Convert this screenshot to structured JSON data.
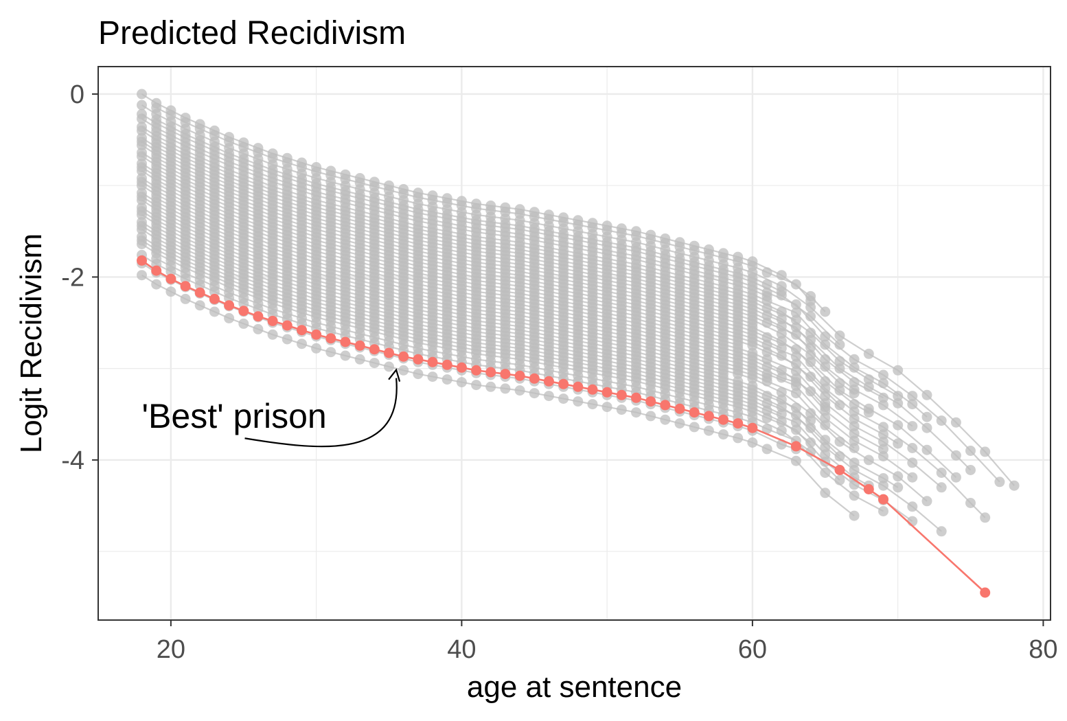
{
  "chart_data": {
    "type": "line",
    "title": "Predicted Recidivism",
    "xlabel": "age at sentence",
    "ylabel": "Logit Recidivism",
    "xlim": [
      15,
      80.5
    ],
    "ylim": [
      -5.75,
      0.3
    ],
    "x_ticks": [
      20,
      40,
      60,
      80
    ],
    "x_tick_labels": [
      "20",
      "40",
      "60",
      "80"
    ],
    "y_ticks": [
      0,
      -2,
      -4
    ],
    "y_tick_labels": [
      "0",
      "-2",
      "-4"
    ],
    "grid": true,
    "legend": "none",
    "colors": {
      "highlight": "#F8766D",
      "background_series": "#BEBEBE",
      "grid": "#EBEBEB",
      "panel_border": "#333333"
    },
    "highlight_series": {
      "name": "'Best' prison",
      "x": [
        18,
        19,
        20,
        21,
        22,
        23,
        24,
        25,
        26,
        27,
        28,
        29,
        30,
        31,
        32,
        33,
        34,
        35,
        36,
        37,
        38,
        39,
        40,
        41,
        42,
        43,
        44,
        45,
        46,
        47,
        48,
        49,
        50,
        51,
        52,
        53,
        54,
        55,
        56,
        57,
        58,
        59,
        60,
        63,
        66,
        68,
        69,
        76
      ],
      "y": [
        -1.82,
        -1.93,
        -2.02,
        -2.1,
        -2.17,
        -2.24,
        -2.31,
        -2.37,
        -2.43,
        -2.48,
        -2.53,
        -2.58,
        -2.63,
        -2.67,
        -2.71,
        -2.75,
        -2.79,
        -2.83,
        -2.87,
        -2.9,
        -2.93,
        -2.96,
        -2.99,
        -3.02,
        -3.04,
        -3.06,
        -3.08,
        -3.11,
        -3.14,
        -3.17,
        -3.2,
        -3.23,
        -3.26,
        -3.29,
        -3.32,
        -3.36,
        -3.4,
        -3.44,
        -3.48,
        -3.52,
        -3.56,
        -3.6,
        -3.65,
        -3.85,
        -4.11,
        -4.32,
        -4.43,
        -5.45
      ]
    },
    "background_series_count": 44,
    "background_profile": {
      "x": [
        18,
        19,
        20,
        21,
        22,
        23,
        24,
        25,
        26,
        27,
        28,
        29,
        30,
        31,
        32,
        33,
        34,
        35,
        36,
        37,
        38,
        39,
        40,
        41,
        42,
        43,
        44,
        45,
        46,
        47,
        48,
        49,
        50,
        51,
        52,
        53,
        54,
        55,
        56,
        57,
        58,
        59,
        60,
        61,
        62,
        63,
        64,
        65,
        66,
        67,
        68,
        69,
        70,
        71,
        72,
        73,
        74,
        75,
        76,
        77,
        78
      ],
      "y": [
        0,
        -0.1,
        -0.18,
        -0.26,
        -0.33,
        -0.4,
        -0.47,
        -0.53,
        -0.59,
        -0.65,
        -0.7,
        -0.75,
        -0.8,
        -0.84,
        -0.88,
        -0.92,
        -0.96,
        -1.0,
        -1.04,
        -1.08,
        -1.11,
        -1.14,
        -1.17,
        -1.2,
        -1.22,
        -1.24,
        -1.26,
        -1.29,
        -1.32,
        -1.35,
        -1.38,
        -1.41,
        -1.44,
        -1.47,
        -1.5,
        -1.54,
        -1.58,
        -1.62,
        -1.66,
        -1.7,
        -1.74,
        -1.78,
        -1.83,
        -1.9,
        -1.98,
        -2.03,
        -2.21,
        -2.38,
        -2.52,
        -2.63,
        -2.72,
        -2.8,
        -2.9,
        -3.03,
        -3.17,
        -3.3,
        -3.47,
        -3.63,
        -3.79,
        -3.97,
        -4.16
      ]
    },
    "background_offsets": [
      0,
      -0.05,
      -0.12,
      -0.18,
      -0.22,
      -0.27,
      -0.31,
      -0.36,
      -0.4,
      -0.44,
      -0.48,
      -0.52,
      -0.56,
      -0.6,
      -0.64,
      -0.68,
      -0.72,
      -0.76,
      -0.8,
      -0.84,
      -0.88,
      -0.92,
      -0.96,
      -1.0,
      -1.04,
      -1.08,
      -1.12,
      -1.16,
      -1.2,
      -1.24,
      -1.28,
      -1.32,
      -1.36,
      -1.4,
      -1.44,
      -1.48,
      -1.52,
      -1.56,
      -1.6,
      -1.64,
      -1.7,
      -1.76,
      -1.85,
      -1.98
    ],
    "background_start_ages": [
      18,
      19,
      18,
      19,
      18,
      18,
      19,
      18,
      18,
      19,
      18,
      18,
      18,
      19,
      18,
      18,
      19,
      18,
      18,
      18,
      19,
      18,
      18,
      18,
      19,
      18,
      18,
      18,
      19,
      18,
      18,
      18,
      19,
      18,
      18,
      18,
      19,
      18,
      18,
      18,
      19,
      18,
      18,
      18
    ],
    "background_end_ages": [
      65,
      64,
      78,
      62,
      66,
      77,
      61,
      72,
      70,
      63,
      75,
      69,
      64,
      71,
      67,
      60,
      74,
      68,
      62,
      76,
      66,
      70,
      59,
      73,
      65,
      69,
      63,
      71,
      61,
      67,
      72,
      58,
      64,
      70,
      66,
      73,
      62,
      68,
      64,
      71,
      66,
      69,
      63,
      67
    ],
    "annotations": [
      {
        "text": "'Best' prison",
        "x": 18,
        "y": -3.65,
        "arrow_to": {
          "x": 35.5,
          "y": -3.0
        }
      }
    ]
  }
}
